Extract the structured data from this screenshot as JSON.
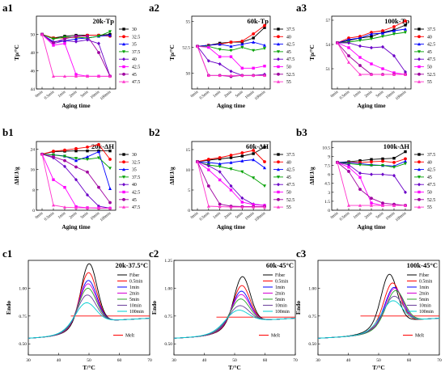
{
  "colors": {
    "t_series": [
      "#000000",
      "#ff0000",
      "#0000ff",
      "#00a000",
      "#6a00c8",
      "#ff00ff",
      "#a000a0",
      "#ff33cc"
    ],
    "dsc_series": [
      "#000000",
      "#ff0000",
      "#0000ff",
      "#d400d4",
      "#2ca02c",
      "#6a3d9a",
      "#00ced1",
      "#ff00ff"
    ]
  },
  "chart_data": [
    {
      "type": "line",
      "label": "a1",
      "tag": "20k-Tp",
      "xlabel": "Aging time",
      "ylabel": "Tp/°C",
      "categories": [
        "0min",
        "0.5min",
        "1min",
        "2min",
        "5min",
        "10min",
        "100min"
      ],
      "ylim": [
        44,
        52
      ],
      "yticks": [
        44,
        46,
        48,
        50
      ],
      "series": [
        {
          "name": "30",
          "values": [
            50.0,
            49.6,
            49.8,
            49.9,
            49.9,
            49.9,
            50.0
          ]
        },
        {
          "name": "32.5",
          "values": [
            50.0,
            49.6,
            49.6,
            49.7,
            49.9,
            49.9,
            49.8
          ]
        },
        {
          "name": "35",
          "values": [
            50.0,
            49.2,
            49.3,
            49.5,
            49.6,
            49.8,
            49.9
          ]
        },
        {
          "name": "37.5",
          "values": [
            50.0,
            49.5,
            49.7,
            49.7,
            49.6,
            49.8,
            50.3
          ]
        },
        {
          "name": "40",
          "values": [
            50.0,
            49.0,
            49.3,
            49.2,
            49.4,
            49.0,
            45.4
          ]
        },
        {
          "name": "42.5",
          "values": [
            50.0,
            48.8,
            49.0,
            45.6,
            45.4,
            45.4,
            45.4
          ]
        },
        {
          "name": "45",
          "values": [
            50.0,
            49.1,
            49.5,
            49.8,
            49.8,
            48.0,
            45.4
          ]
        },
        {
          "name": "47.5",
          "values": [
            50.0,
            45.4,
            45.4,
            45.4,
            45.4,
            45.4,
            45.4
          ]
        }
      ]
    },
    {
      "type": "line",
      "label": "a2",
      "tag": "60k-Tp",
      "xlabel": "Aging time",
      "ylabel": "Tp/°C",
      "categories": [
        "0min",
        "0.5min",
        "1min",
        "2min",
        "5min",
        "10min",
        "100min"
      ],
      "ylim": [
        48.5,
        55.5
      ],
      "yticks": [
        50.0,
        52.5,
        55.0
      ],
      "series": [
        {
          "name": "37.5",
          "values": [
            52.6,
            52.7,
            52.9,
            53.0,
            53.0,
            53.4,
            54.4
          ]
        },
        {
          "name": "40",
          "values": [
            52.6,
            52.7,
            52.8,
            53.0,
            53.1,
            53.8,
            54.6
          ]
        },
        {
          "name": "42.5",
          "values": [
            52.6,
            52.7,
            52.8,
            52.6,
            52.8,
            53.0,
            52.7
          ]
        },
        {
          "name": "45",
          "values": [
            52.6,
            52.6,
            52.3,
            52.2,
            52.5,
            52.2,
            52.4
          ]
        },
        {
          "name": "47.5",
          "values": [
            52.6,
            51.2,
            50.9,
            50.2,
            49.8,
            49.8,
            49.9
          ]
        },
        {
          "name": "50",
          "values": [
            52.6,
            52.5,
            51.6,
            51.6,
            50.5,
            50.5,
            50.7
          ]
        },
        {
          "name": "52.5",
          "values": [
            52.6,
            49.8,
            49.8,
            49.7,
            49.8,
            49.8,
            49.8
          ]
        },
        {
          "name": "55",
          "values": [
            52.6,
            49.8,
            49.8,
            49.8,
            49.8,
            49.8,
            49.8
          ]
        }
      ]
    },
    {
      "type": "line",
      "label": "a3",
      "tag": "100k-Tp",
      "xlabel": "Aging time",
      "ylabel": "Tp/°C",
      "categories": [
        "0min",
        "0.5min",
        "1min",
        "2min",
        "5min",
        "10min",
        "100min"
      ],
      "ylim": [
        48.5,
        57.5
      ],
      "yticks": [
        51,
        54,
        57
      ],
      "series": [
        {
          "name": "37.5",
          "values": [
            54.2,
            54.5,
            54.8,
            55.0,
            55.5,
            55.8,
            56.4
          ]
        },
        {
          "name": "40",
          "values": [
            54.2,
            54.8,
            55.0,
            55.5,
            55.7,
            56.2,
            56.9
          ]
        },
        {
          "name": "42.5",
          "values": [
            54.2,
            54.6,
            54.8,
            55.3,
            55.4,
            55.7,
            55.9
          ]
        },
        {
          "name": "45",
          "values": [
            54.2,
            54.3,
            54.5,
            54.7,
            55.0,
            55.3,
            55.5
          ]
        },
        {
          "name": "47.5",
          "values": [
            54.2,
            54.2,
            53.8,
            53.6,
            53.7,
            52.6,
            50.6
          ]
        },
        {
          "name": "50",
          "values": [
            54.2,
            53.6,
            52.4,
            51.6,
            51.0,
            50.5,
            50.3
          ]
        },
        {
          "name": "52.5",
          "values": [
            54.2,
            52.6,
            51.4,
            50.3,
            50.3,
            50.3,
            50.3
          ]
        },
        {
          "name": "55",
          "values": [
            54.2,
            51.8,
            50.3,
            50.3,
            50.3,
            50.3,
            50.3
          ]
        }
      ]
    },
    {
      "type": "line",
      "label": "b1",
      "tag": "20k-ΔH",
      "xlabel": "Aging time",
      "ylabel": "ΔH/J/g",
      "categories": [
        "0min",
        "0.5min",
        "1min",
        "2min",
        "5min",
        "10min",
        "100min"
      ],
      "ylim": [
        0,
        27
      ],
      "yticks": [
        0,
        8,
        16,
        24
      ],
      "series": [
        {
          "name": "30",
          "values": [
            22.0,
            23.0,
            23.2,
            23.3,
            23.3,
            23.3,
            23.3
          ]
        },
        {
          "name": "32.5",
          "values": [
            22.0,
            23.2,
            23.6,
            24.2,
            24.8,
            25.8,
            20.0
          ]
        },
        {
          "name": "35",
          "values": [
            22.0,
            21.8,
            21.3,
            19.5,
            21.0,
            23.0,
            8.5
          ]
        },
        {
          "name": "37.5",
          "values": [
            22.0,
            21.7,
            21.2,
            20.4,
            20.0,
            20.6,
            16.5
          ]
        },
        {
          "name": "40",
          "values": [
            22.0,
            20.6,
            17.2,
            12.0,
            6.0,
            1.6,
            0.8
          ]
        },
        {
          "name": "42.5",
          "values": [
            22.0,
            12.0,
            9.0,
            1.4,
            1.0,
            0.9,
            0.8
          ]
        },
        {
          "name": "45",
          "values": [
            22.0,
            21.0,
            19.5,
            17.0,
            15.0,
            9.0,
            3.0
          ]
        },
        {
          "name": "47.5",
          "values": [
            22.0,
            2.0,
            1.2,
            1.0,
            0.9,
            0.8,
            0.8
          ]
        }
      ]
    },
    {
      "type": "line",
      "label": "b2",
      "tag": "60k-ΔH",
      "xlabel": "Aging time",
      "ylabel": "ΔH/J/g",
      "categories": [
        "0min",
        "0.5min",
        "1min",
        "2min",
        "5min",
        "10min",
        "100min"
      ],
      "ylim": [
        0,
        17
      ],
      "yticks": [
        0,
        5,
        10,
        15
      ],
      "series": [
        {
          "name": "37.5",
          "values": [
            12.0,
            12.4,
            12.7,
            13.0,
            13.4,
            14.0,
            15.6
          ]
        },
        {
          "name": "40",
          "values": [
            12.0,
            12.6,
            13.0,
            13.6,
            14.2,
            14.8,
            12.0
          ]
        },
        {
          "name": "42.5",
          "values": [
            12.0,
            11.8,
            11.5,
            11.8,
            12.2,
            12.5,
            10.5
          ]
        },
        {
          "name": "45",
          "values": [
            12.0,
            11.2,
            10.8,
            10.2,
            9.5,
            8.0,
            6.0
          ]
        },
        {
          "name": "47.5",
          "values": [
            12.0,
            11.0,
            9.5,
            6.0,
            3.0,
            1.5,
            1.2
          ]
        },
        {
          "name": "50",
          "values": [
            12.0,
            10.0,
            7.5,
            5.0,
            2.0,
            1.4,
            1.2
          ]
        },
        {
          "name": "52.5",
          "values": [
            12.0,
            6.0,
            1.5,
            1.0,
            0.9,
            0.9,
            0.9
          ]
        },
        {
          "name": "55",
          "values": [
            12.0,
            1.0,
            0.9,
            0.8,
            0.8,
            0.8,
            0.8
          ]
        }
      ]
    },
    {
      "type": "line",
      "label": "b3",
      "tag": "100k-ΔH",
      "xlabel": "Aging time",
      "ylabel": "ΔH/J/g",
      "categories": [
        "0min",
        "0.5min",
        "1min",
        "2min",
        "5min",
        "10min",
        "100min"
      ],
      "ylim": [
        0,
        11.5
      ],
      "yticks": [
        0.0,
        1.5,
        3.0,
        4.5,
        6.0,
        7.5,
        9.0,
        10.5
      ],
      "series": [
        {
          "name": "37.5",
          "values": [
            8.0,
            8.1,
            8.3,
            8.5,
            8.6,
            8.7,
            9.8
          ]
        },
        {
          "name": "40",
          "values": [
            8.0,
            8.0,
            8.0,
            8.1,
            8.2,
            8.0,
            8.6
          ]
        },
        {
          "name": "42.5",
          "values": [
            8.0,
            8.0,
            7.8,
            7.6,
            7.5,
            7.4,
            8.2
          ]
        },
        {
          "name": "45",
          "values": [
            8.0,
            7.8,
            7.6,
            7.5,
            7.5,
            7.2,
            7.8
          ]
        },
        {
          "name": "47.5",
          "values": [
            8.0,
            7.6,
            6.2,
            6.0,
            6.0,
            5.8,
            3.0
          ]
        },
        {
          "name": "50",
          "values": [
            8.0,
            7.2,
            5.5,
            1.2,
            0.8,
            0.8,
            0.8
          ]
        },
        {
          "name": "52.5",
          "values": [
            8.0,
            6.5,
            3.5,
            2.0,
            1.2,
            1.0,
            0.8
          ]
        },
        {
          "name": "55",
          "values": [
            8.0,
            0.8,
            0.8,
            0.8,
            0.8,
            0.8,
            0.8
          ]
        }
      ]
    },
    {
      "type": "line",
      "label": "c1",
      "tag": "20k-37.5°C",
      "xlabel": "T/°C",
      "ylabel": "Endo",
      "xlim": [
        30,
        70
      ],
      "xticks": [
        30,
        40,
        50,
        60,
        70
      ],
      "ylim": [
        0.4,
        1.25
      ],
      "yticks": [
        0.5,
        0.75,
        1.0
      ],
      "base": 0.55,
      "melt_level": 0.75,
      "melt_label": "Melt",
      "series": [
        {
          "name": "Fiber",
          "peak": 1.2,
          "center": 50.0,
          "width": 2.6
        },
        {
          "name": "0.5min",
          "peak": 1.12,
          "center": 49.8,
          "width": 2.7
        },
        {
          "name": "1min",
          "peak": 1.05,
          "center": 49.7,
          "width": 2.8
        },
        {
          "name": "2min",
          "peak": 1.02,
          "center": 49.6,
          "width": 2.8
        },
        {
          "name": "5min",
          "peak": 0.98,
          "center": 49.5,
          "width": 2.9
        },
        {
          "name": "10min",
          "peak": 0.92,
          "center": 49.3,
          "width": 3.0
        },
        {
          "name": "100min",
          "peak": 0.85,
          "center": 49.0,
          "width": 3.2
        }
      ]
    },
    {
      "type": "line",
      "label": "c2",
      "tag": "60k-45°C",
      "xlabel": "T/°C",
      "ylabel": "Endo",
      "xlim": [
        30,
        70
      ],
      "xticks": [
        30,
        40,
        50,
        60,
        70
      ],
      "ylim": [
        0.4,
        1.25
      ],
      "yticks": [
        0.5,
        0.75,
        1.0,
        1.25
      ],
      "base": 0.55,
      "melt_level": 0.74,
      "melt_label": "Melt",
      "series": [
        {
          "name": "Fiber",
          "peak": 1.08,
          "center": 52.5,
          "width": 2.6
        },
        {
          "name": "0.5min",
          "peak": 1.0,
          "center": 52.3,
          "width": 2.7
        },
        {
          "name": "1min",
          "peak": 0.95,
          "center": 52.1,
          "width": 2.8
        },
        {
          "name": "2min",
          "peak": 0.92,
          "center": 52.0,
          "width": 2.9
        },
        {
          "name": "5min",
          "peak": 0.88,
          "center": 51.8,
          "width": 3.0
        },
        {
          "name": "10min",
          "peak": 0.82,
          "center": 51.5,
          "width": 3.2
        },
        {
          "name": "100min",
          "peak": 0.78,
          "center": 51.0,
          "width": 3.4
        }
      ]
    },
    {
      "type": "line",
      "label": "c3",
      "tag": "100k-45°C",
      "xlabel": "T/°C",
      "ylabel": "Endo",
      "xlim": [
        30,
        70
      ],
      "xticks": [
        30,
        40,
        50,
        60,
        70
      ],
      "ylim": [
        0.4,
        1.25
      ],
      "yticks": [
        0.5,
        0.75,
        1.0
      ],
      "base": 0.55,
      "melt_level": 0.75,
      "melt_label": "Melt",
      "series": [
        {
          "name": "Fiber",
          "peak": 1.1,
          "center": 53.5,
          "width": 2.6
        },
        {
          "name": "0.5min",
          "peak": 1.02,
          "center": 54.5,
          "width": 2.7
        },
        {
          "name": "1min",
          "peak": 0.98,
          "center": 55.0,
          "width": 2.8
        },
        {
          "name": "2min",
          "peak": 0.97,
          "center": 55.2,
          "width": 2.8
        },
        {
          "name": "5min",
          "peak": 0.95,
          "center": 55.5,
          "width": 2.9
        },
        {
          "name": "10min",
          "peak": 0.9,
          "center": 55.0,
          "width": 3.0
        },
        {
          "name": "100min",
          "peak": 0.86,
          "center": 54.5,
          "width": 3.2
        }
      ]
    }
  ]
}
